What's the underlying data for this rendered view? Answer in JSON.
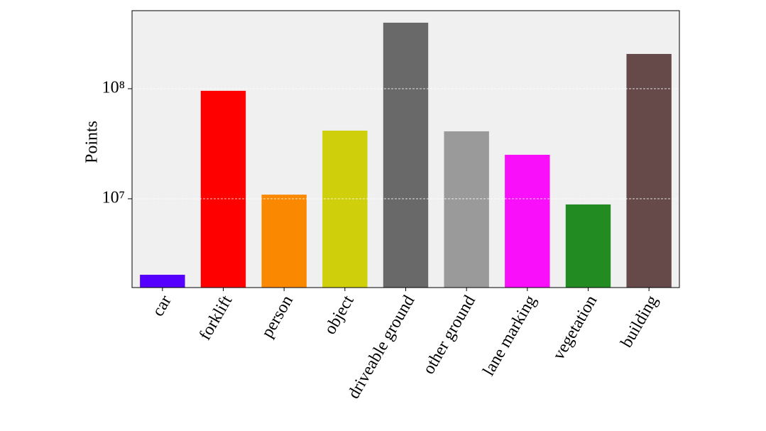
{
  "chart_data": {
    "type": "bar",
    "ylabel": "Points",
    "categories": [
      "car",
      "forklift",
      "person",
      "object",
      "driveable ground",
      "other ground",
      "lane marking",
      "vegetation",
      "building"
    ],
    "values": [
      2040000,
      95700000,
      10900000,
      41600000,
      398000000,
      41000000,
      25100000,
      8880000,
      207000000
    ],
    "colors": [
      "#5500ff",
      "#ff0000",
      "#fa8800",
      "#cfcf0c",
      "#696969",
      "#9a9a9a",
      "#f90ff9",
      "#228b22",
      "#664a4a"
    ],
    "ylim": [
      1560000,
      512000000
    ],
    "yticks": [
      {
        "value": 10000000,
        "label": "10⁷"
      },
      {
        "value": 100000000,
        "label": "10⁸"
      }
    ],
    "log_scale": true,
    "grid": true
  }
}
